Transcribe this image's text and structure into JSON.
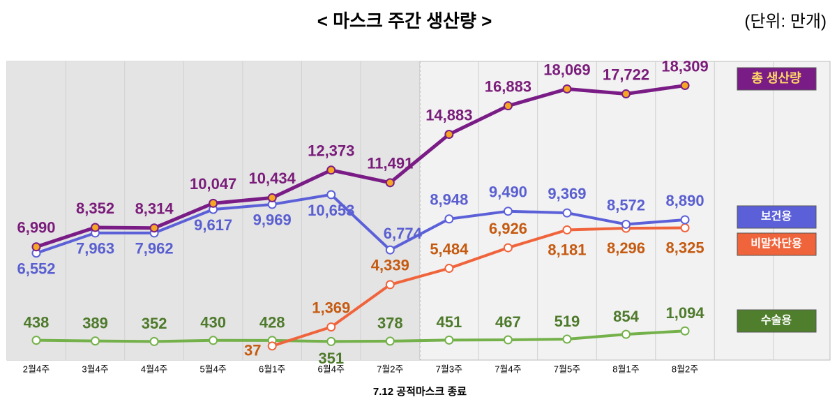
{
  "chart_data": {
    "type": "line",
    "title": "< 마스크 주간 생산량 >",
    "unit": "(단위: 만개)",
    "annotation": "7.12 공적마스크 종료",
    "categories": [
      "2월4주",
      "3월4주",
      "4월4주",
      "5월4주",
      "6월1주",
      "6월4주",
      "7월2주",
      "7월3주",
      "7월4주",
      "7월5주",
      "8월1주",
      "8월2주"
    ],
    "ylim": [
      -1000,
      20000
    ],
    "series": [
      {
        "name": "총 생산량",
        "color": "#7a1c86",
        "marker": "#f5a623",
        "values": [
          6990,
          8352,
          8314,
          10047,
          10434,
          12373,
          11491,
          14883,
          16883,
          18069,
          17722,
          18309
        ],
        "value_labels": [
          "6,990",
          "8,352",
          "8,314",
          "10,047",
          "10,434",
          "12,373",
          "11,491",
          "14,883",
          "16,883",
          "18,069",
          "17,722",
          "18,309"
        ]
      },
      {
        "name": "보건용",
        "color": "#5b60d8",
        "marker": "#ffffff",
        "values": [
          6552,
          7963,
          7962,
          9617,
          9969,
          10653,
          6774,
          8948,
          9490,
          9369,
          8572,
          8890
        ],
        "value_labels": [
          "6,552",
          "7,963",
          "7,962",
          "9,617",
          "9,969",
          "10,653",
          "6,774",
          "8,948",
          "9,490",
          "9,369",
          "8,572",
          "8,890"
        ]
      },
      {
        "name": "비말차단용",
        "color": "#f0643c",
        "marker": "#ffffff",
        "values": [
          null,
          null,
          null,
          null,
          37,
          1369,
          4339,
          5484,
          6926,
          8181,
          8296,
          8325
        ],
        "value_labels": [
          null,
          null,
          null,
          null,
          "37",
          "1,369",
          "4,339",
          "5,484",
          "6,926",
          "8,181",
          "8,296",
          "8,325"
        ]
      },
      {
        "name": "수술용",
        "color": "#74b14a",
        "marker": "#ffffff",
        "values": [
          438,
          389,
          352,
          430,
          428,
          351,
          378,
          451,
          467,
          519,
          854,
          1094
        ],
        "value_labels": [
          "438",
          "389",
          "352",
          "430",
          "428",
          "351",
          "378",
          "451",
          "467",
          "519",
          "854",
          "1,094"
        ]
      }
    ]
  }
}
